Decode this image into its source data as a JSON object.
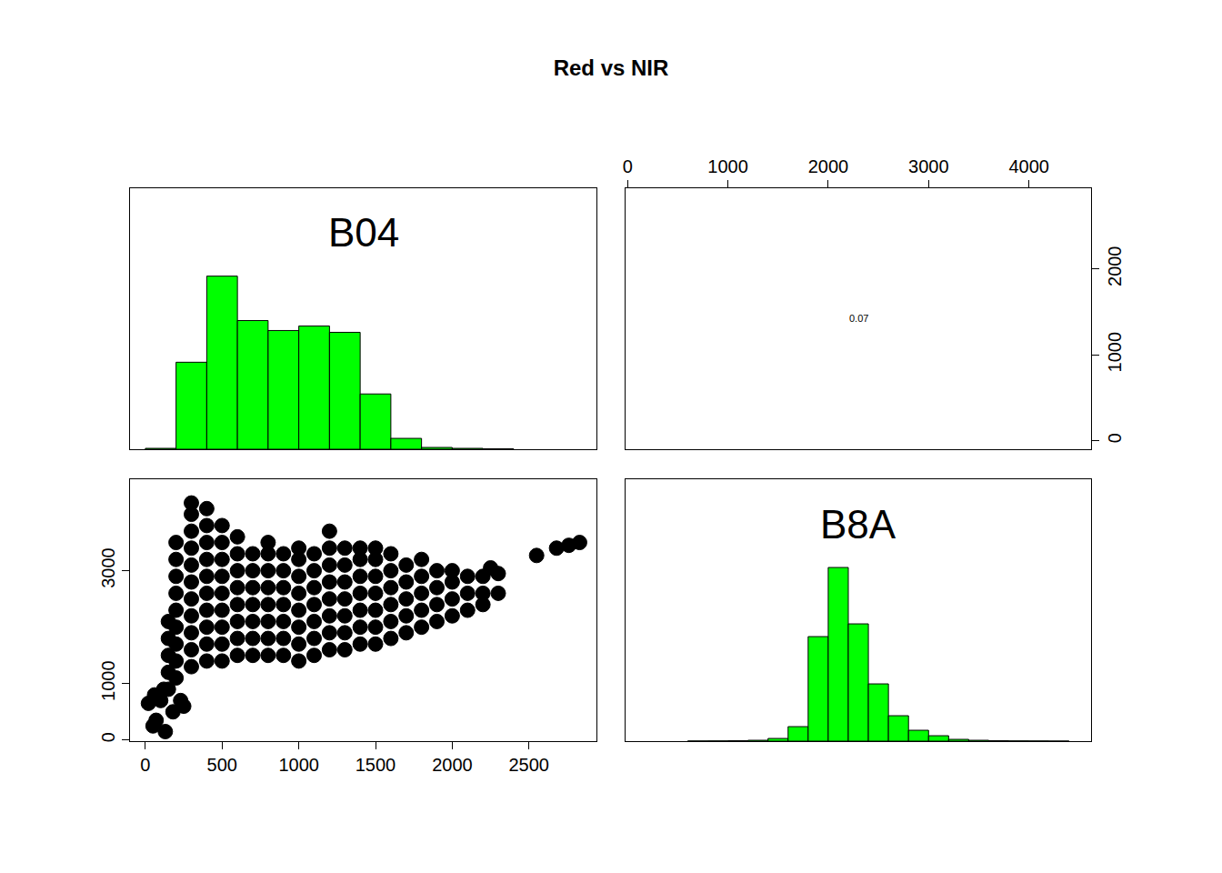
{
  "chart_data": {
    "type": "pairs",
    "title": "Red vs NIR",
    "panels": [
      {
        "type": "histogram",
        "label": "B04",
        "color": "#00ff00",
        "tick_labels": false,
        "bins": [
          0,
          200,
          400,
          600,
          800,
          1000,
          1200,
          1400,
          1600,
          1800,
          2000,
          2200,
          2400
        ],
        "counts": [
          1,
          96,
          191,
          142,
          131,
          136,
          129,
          61,
          12,
          2,
          1,
          0.5
        ],
        "xlim": [
          -100,
          2940
        ],
        "ylim": [
          0,
          288
        ]
      },
      {
        "type": "text",
        "text": "0.07",
        "xlim": [
          -20,
          4620
        ],
        "ylim": [
          -100,
          2940
        ],
        "xticks": [
          0,
          1000,
          2000,
          3000,
          4000
        ],
        "yticks": [
          0,
          1000,
          2000
        ]
      },
      {
        "type": "scatter",
        "color": "#000000",
        "marker": "circle",
        "x": [
          150,
          150,
          150,
          150,
          150,
          200,
          200,
          200,
          200,
          200,
          200,
          200,
          200,
          200,
          300,
          300,
          300,
          300,
          300,
          300,
          300,
          300,
          300,
          300,
          300,
          400,
          400,
          400,
          400,
          400,
          400,
          400,
          400,
          400,
          400,
          500,
          500,
          500,
          500,
          500,
          500,
          500,
          500,
          500,
          600,
          600,
          600,
          600,
          600,
          600,
          600,
          600,
          700,
          700,
          700,
          700,
          700,
          700,
          700,
          800,
          800,
          800,
          800,
          800,
          800,
          800,
          800,
          900,
          900,
          900,
          900,
          900,
          900,
          900,
          1000,
          1000,
          1000,
          1000,
          1000,
          1000,
          1000,
          1000,
          1100,
          1100,
          1100,
          1100,
          1100,
          1100,
          1100,
          1200,
          1200,
          1200,
          1200,
          1200,
          1200,
          1200,
          1200,
          1300,
          1300,
          1300,
          1300,
          1300,
          1300,
          1300,
          1400,
          1400,
          1400,
          1400,
          1400,
          1400,
          1400,
          1500,
          1500,
          1500,
          1500,
          1500,
          1500,
          1500,
          1600,
          1600,
          1600,
          1600,
          1600,
          1600,
          1700,
          1700,
          1700,
          1700,
          1700,
          1800,
          1800,
          1800,
          1800,
          1800,
          1900,
          1900,
          1900,
          1900,
          2000,
          2000,
          2000,
          2000,
          2100,
          2100,
          2100,
          2200,
          2200,
          2200,
          2300,
          2550,
          2680,
          2760,
          2830,
          2250,
          2300,
          20,
          50,
          70,
          130,
          100,
          120,
          180,
          230,
          250,
          60
        ],
        "y": [
          900,
          1200,
          1500,
          1800,
          2100,
          1100,
          1400,
          1700,
          2000,
          2300,
          2600,
          2900,
          3200,
          3500,
          1300,
          1600,
          1900,
          2200,
          2500,
          2800,
          3100,
          3400,
          3700,
          4000,
          4200,
          1400,
          1700,
          2000,
          2300,
          2600,
          2900,
          3200,
          3500,
          3800,
          4100,
          1400,
          1700,
          2000,
          2300,
          2600,
          2900,
          3200,
          3500,
          3800,
          1500,
          1800,
          2100,
          2400,
          2700,
          3000,
          3300,
          3600,
          1500,
          1800,
          2100,
          2400,
          2700,
          3000,
          3300,
          1500,
          1800,
          2100,
          2400,
          2700,
          3000,
          3300,
          3500,
          1500,
          1800,
          2100,
          2400,
          2700,
          3000,
          3300,
          1400,
          1700,
          2000,
          2300,
          2600,
          2900,
          3200,
          3400,
          1500,
          1800,
          2100,
          2400,
          2700,
          3000,
          3300,
          1600,
          1900,
          2200,
          2500,
          2800,
          3100,
          3400,
          3700,
          1600,
          1900,
          2200,
          2500,
          2800,
          3100,
          3400,
          1700,
          2000,
          2300,
          2600,
          2900,
          3200,
          3400,
          1700,
          2000,
          2300,
          2600,
          2900,
          3200,
          3400,
          1800,
          2100,
          2400,
          2700,
          3000,
          3300,
          1900,
          2200,
          2500,
          2800,
          3100,
          2000,
          2300,
          2600,
          2900,
          3200,
          2100,
          2400,
          2700,
          3000,
          2200,
          2500,
          2800,
          3000,
          2300,
          2600,
          2900,
          2400,
          2600,
          2900,
          2600,
          3270,
          3400,
          3450,
          3500,
          3050,
          2950,
          650,
          250,
          350,
          150,
          700,
          900,
          500,
          700,
          600,
          800
        ],
        "xlim": [
          -100,
          2940
        ],
        "ylim": [
          -20,
          4620
        ],
        "xticks": [
          0,
          500,
          1000,
          1500,
          2000,
          2500
        ],
        "yticks": [
          0,
          1000,
          3000
        ]
      },
      {
        "type": "histogram",
        "label": "B8A",
        "color": "#00ff00",
        "tick_labels": false,
        "bins": [
          600,
          800,
          1000,
          1200,
          1400,
          1600,
          1800,
          2000,
          2200,
          2400,
          2600,
          2800,
          3000,
          3200,
          3400,
          3600,
          3800,
          4000,
          4200,
          4400
        ],
        "counts": [
          0.2,
          0.3,
          0.5,
          1,
          3,
          16,
          115,
          191,
          129,
          63,
          28,
          12,
          6,
          2,
          1,
          0.5,
          0.3,
          0.2,
          0.1
        ],
        "xlim": [
          -20,
          4620
        ],
        "ylim": [
          0,
          288
        ]
      }
    ]
  }
}
